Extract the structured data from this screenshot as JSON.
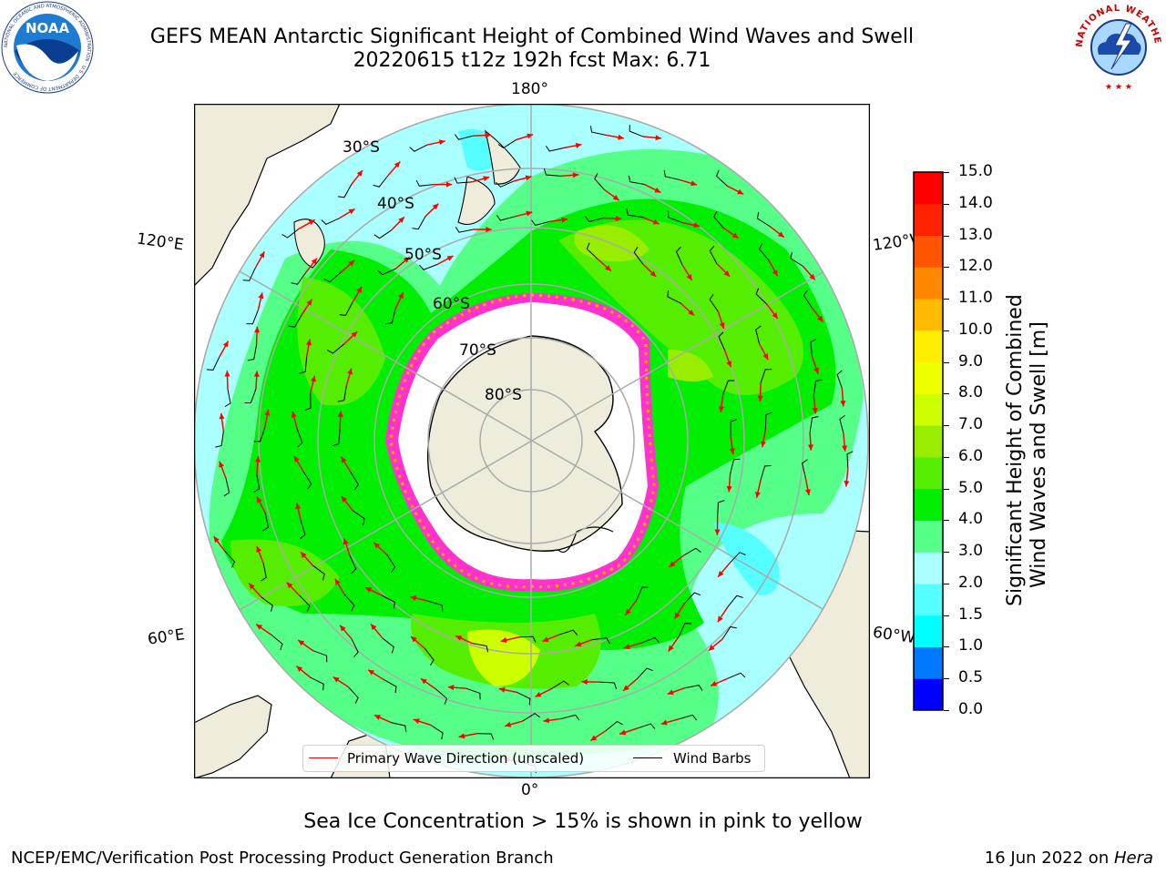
{
  "header": {
    "title_line1": "GEFS MEAN Antarctic Significant Height of Combined Wind Waves and Swell",
    "title_line2": "20220615 t12z 192h fcst   Max: 6.71"
  },
  "logos": {
    "noaa_text": "NOAA",
    "noaa_ring": "NATIONAL OCEANIC AND ATMOSPHERIC ADMINISTRATION · U.S. DEPARTMENT OF COMMERCE",
    "nws_ring": "NATIONAL WEATHER SERVICE"
  },
  "map": {
    "projection": "south-polar-stereographic",
    "lon_labels": {
      "top": "180°",
      "bottom": "0°",
      "upper_left": "120°E",
      "upper_right": "120°W",
      "lower_left": "60°E",
      "lower_right": "60°W"
    },
    "lat_labels": [
      "30°S",
      "40°S",
      "50°S",
      "60°S",
      "70°S",
      "80°S"
    ],
    "colors": {
      "land": "#efecdc",
      "ocean_base": "#aaffff",
      "sea_ice": "#ff33cc",
      "arrow": "#ff0000",
      "barb": "#000000"
    }
  },
  "legend": {
    "wave_direction_label": "Primary Wave Direction (unscaled)",
    "wind_barbs_label": "Wind Barbs"
  },
  "colorbar": {
    "label_line1": "Significant Height of Combined",
    "label_line2": "Wind Waves and Swell [m]",
    "ticks": [
      "0.0",
      "0.5",
      "1.0",
      "1.5",
      "2.0",
      "3.0",
      "4.0",
      "5.0",
      "6.0",
      "7.0",
      "8.0",
      "9.0",
      "10.0",
      "11.0",
      "12.0",
      "13.0",
      "14.0",
      "15.0"
    ],
    "colors": [
      "#0000ff",
      "#0078ff",
      "#00ffff",
      "#55ffff",
      "#aaffff",
      "#55ff88",
      "#00ee00",
      "#55ee00",
      "#99ee00",
      "#ccff00",
      "#eeff00",
      "#ffee00",
      "#ffbb00",
      "#ff8800",
      "#ff5500",
      "#ff2200",
      "#ff0000"
    ]
  },
  "footer": {
    "note": "Sea Ice Concentration > 15% is shown in pink to yellow",
    "left": "NCEP/EMC/Verification Post Processing Product Generation Branch",
    "right_prefix": "16 Jun 2022 on ",
    "right_machine": "Hera"
  }
}
